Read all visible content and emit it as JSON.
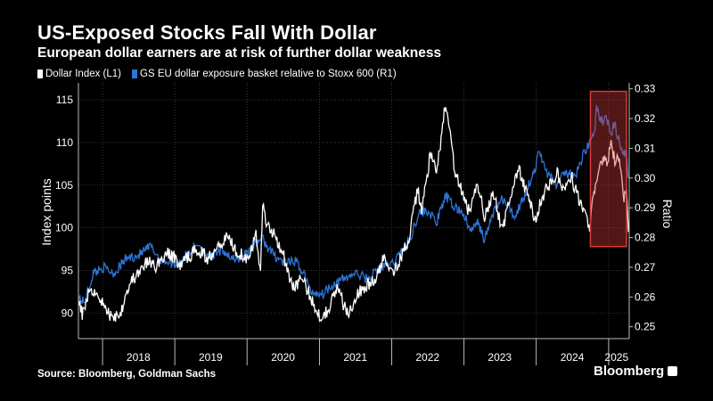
{
  "title": "US-Exposed Stocks Fall With Dollar",
  "subtitle": "European dollar earners are at risk of further dollar weakness",
  "source": "Source: Bloomberg, Goldman Sachs",
  "brand": "Bloomberg",
  "colors": {
    "dollar_index": "#ffffff",
    "gs_basket": "#2e74d4",
    "highlight": "#d93a3a"
  },
  "chart_data": {
    "type": "line",
    "title": "US-Exposed Stocks Fall With Dollar",
    "subtitle": "European dollar earners are at risk of further dollar weakness",
    "ylabel": "Index points",
    "y2label": "Ratio",
    "ylim": [
      87,
      117
    ],
    "y2lim": [
      0.246,
      0.332
    ],
    "yticks": [
      90,
      95,
      100,
      105,
      110,
      115
    ],
    "y2ticks": [
      0.25,
      0.26,
      0.27,
      0.28,
      0.29,
      0.3,
      0.31,
      0.32,
      0.33
    ],
    "y2tick_labels": [
      "0.25",
      "0.26",
      "0.27",
      "0.28",
      "0.29",
      "0.30",
      "0.31",
      "0.32",
      "0.33"
    ],
    "xlim": [
      "2017-09-01",
      "2025-04-15"
    ],
    "year_labels": [
      {
        "label": "2018",
        "mid": "2018-07-01"
      },
      {
        "label": "2019",
        "mid": "2019-07-01"
      },
      {
        "label": "2020",
        "mid": "2020-07-01"
      },
      {
        "label": "2021",
        "mid": "2021-07-01"
      },
      {
        "label": "2022",
        "mid": "2022-07-01"
      },
      {
        "label": "2023",
        "mid": "2023-07-01"
      },
      {
        "label": "2024",
        "mid": "2024-07-01"
      },
      {
        "label": "2025",
        "mid": "2025-02-10"
      }
    ],
    "year_boundaries": [
      "2018-01-01",
      "2019-01-01",
      "2020-01-01",
      "2021-01-01",
      "2022-01-01",
      "2023-01-01",
      "2024-01-01",
      "2025-01-01"
    ],
    "grid": true,
    "legend_position": "top-left",
    "highlight_range": {
      "start": "2024-10-01",
      "end": "2025-04-01",
      "ymin": 97.8,
      "ymax": 116
    },
    "series": [
      {
        "name": "Dollar Index (L1)",
        "axis": "left",
        "points": [
          [
            "2017-09-01",
            92
          ],
          [
            "2017-09-20",
            90
          ],
          [
            "2017-11-01",
            93
          ],
          [
            "2017-12-15",
            92
          ],
          [
            "2018-01-15",
            90.5
          ],
          [
            "2018-02-15",
            89.5
          ],
          [
            "2018-04-01",
            90
          ],
          [
            "2018-05-01",
            92.5
          ],
          [
            "2018-06-01",
            94
          ],
          [
            "2018-07-01",
            94.5
          ],
          [
            "2018-08-15",
            96
          ],
          [
            "2018-10-01",
            95.5
          ],
          [
            "2018-11-15",
            97
          ],
          [
            "2018-12-31",
            96.5
          ],
          [
            "2019-02-01",
            95.5
          ],
          [
            "2019-03-01",
            96.5
          ],
          [
            "2019-05-01",
            97.5
          ],
          [
            "2019-06-15",
            96.3
          ],
          [
            "2019-08-01",
            98
          ],
          [
            "2019-09-30",
            99
          ],
          [
            "2019-11-01",
            97.5
          ],
          [
            "2019-12-31",
            96.5
          ],
          [
            "2020-02-15",
            99
          ],
          [
            "2020-03-09",
            95
          ],
          [
            "2020-03-20",
            102.8
          ],
          [
            "2020-04-15",
            100
          ],
          [
            "2020-05-15",
            99.5
          ],
          [
            "2020-07-01",
            97
          ],
          [
            "2020-08-15",
            93
          ],
          [
            "2020-10-01",
            94
          ],
          [
            "2020-11-15",
            92
          ],
          [
            "2021-01-05",
            89.5
          ],
          [
            "2021-02-15",
            90.5
          ],
          [
            "2021-03-31",
            93
          ],
          [
            "2021-05-25",
            89.7
          ],
          [
            "2021-07-01",
            92
          ],
          [
            "2021-08-15",
            93
          ],
          [
            "2021-10-15",
            94
          ],
          [
            "2021-11-24",
            96.5
          ],
          [
            "2022-01-15",
            95
          ],
          [
            "2022-02-28",
            97
          ],
          [
            "2022-04-01",
            99
          ],
          [
            "2022-05-12",
            104.5
          ],
          [
            "2022-06-01",
            102
          ],
          [
            "2022-07-14",
            108.5
          ],
          [
            "2022-08-15",
            106.5
          ],
          [
            "2022-09-27",
            114
          ],
          [
            "2022-10-20",
            112
          ],
          [
            "2022-11-15",
            106.5
          ],
          [
            "2022-12-31",
            103.5
          ],
          [
            "2023-02-01",
            101.5
          ],
          [
            "2023-03-08",
            105.5
          ],
          [
            "2023-04-15",
            101.5
          ],
          [
            "2023-05-31",
            104
          ],
          [
            "2023-07-14",
            99.6
          ],
          [
            "2023-08-15",
            103
          ],
          [
            "2023-10-03",
            107
          ],
          [
            "2023-11-15",
            104
          ],
          [
            "2023-12-27",
            101
          ],
          [
            "2024-02-15",
            104.5
          ],
          [
            "2024-04-16",
            106.3
          ],
          [
            "2024-05-15",
            104.5
          ],
          [
            "2024-06-26",
            106
          ],
          [
            "2024-08-15",
            102.5
          ],
          [
            "2024-09-27",
            100.3
          ],
          [
            "2024-10-15",
            103.5
          ],
          [
            "2024-11-22",
            107.5
          ],
          [
            "2024-12-31",
            108
          ],
          [
            "2025-01-13",
            110
          ],
          [
            "2025-02-01",
            108
          ],
          [
            "2025-02-28",
            107.5
          ],
          [
            "2025-03-15",
            103.5
          ],
          [
            "2025-04-01",
            104
          ],
          [
            "2025-04-11",
            99.5
          ]
        ]
      },
      {
        "name": "GS EU dollar exposure basket relative to Stoxx 600 (R1)",
        "axis": "right",
        "points": [
          [
            "2017-09-01",
            0.26
          ],
          [
            "2017-10-01",
            0.258
          ],
          [
            "2017-11-15",
            0.268
          ],
          [
            "2018-01-01",
            0.27
          ],
          [
            "2018-03-01",
            0.268
          ],
          [
            "2018-05-01",
            0.273
          ],
          [
            "2018-07-01",
            0.274
          ],
          [
            "2018-09-01",
            0.277
          ],
          [
            "2018-10-15",
            0.273
          ],
          [
            "2018-12-31",
            0.271
          ],
          [
            "2019-03-01",
            0.274
          ],
          [
            "2019-05-01",
            0.278
          ],
          [
            "2019-07-01",
            0.273
          ],
          [
            "2019-09-01",
            0.276
          ],
          [
            "2019-11-01",
            0.272
          ],
          [
            "2020-01-15",
            0.276
          ],
          [
            "2020-03-15",
            0.28
          ],
          [
            "2020-05-01",
            0.275
          ],
          [
            "2020-07-15",
            0.271
          ],
          [
            "2020-09-01",
            0.272
          ],
          [
            "2020-10-15",
            0.268
          ],
          [
            "2020-11-15",
            0.262
          ],
          [
            "2021-01-15",
            0.261
          ],
          [
            "2021-03-01",
            0.264
          ],
          [
            "2021-05-01",
            0.266
          ],
          [
            "2021-07-01",
            0.268
          ],
          [
            "2021-09-01",
            0.266
          ],
          [
            "2021-11-01",
            0.27
          ],
          [
            "2022-01-01",
            0.271
          ],
          [
            "2022-02-15",
            0.275
          ],
          [
            "2022-04-01",
            0.279
          ],
          [
            "2022-05-15",
            0.288
          ],
          [
            "2022-07-01",
            0.289
          ],
          [
            "2022-08-15",
            0.285
          ],
          [
            "2022-10-01",
            0.294
          ],
          [
            "2022-11-01",
            0.291
          ],
          [
            "2022-12-31",
            0.288
          ],
          [
            "2023-02-01",
            0.282
          ],
          [
            "2023-03-15",
            0.285
          ],
          [
            "2023-04-15",
            0.279
          ],
          [
            "2023-06-01",
            0.289
          ],
          [
            "2023-07-15",
            0.293
          ],
          [
            "2023-09-15",
            0.287
          ],
          [
            "2023-11-01",
            0.294
          ],
          [
            "2023-12-31",
            0.304
          ],
          [
            "2024-01-15",
            0.309
          ],
          [
            "2024-03-01",
            0.301
          ],
          [
            "2024-04-15",
            0.298
          ],
          [
            "2024-06-01",
            0.302
          ],
          [
            "2024-07-15",
            0.3
          ],
          [
            "2024-09-01",
            0.309
          ],
          [
            "2024-10-20",
            0.315
          ],
          [
            "2024-11-01",
            0.323
          ],
          [
            "2024-11-20",
            0.319
          ],
          [
            "2024-12-15",
            0.32
          ],
          [
            "2025-01-15",
            0.316
          ],
          [
            "2025-02-01",
            0.318
          ],
          [
            "2025-02-28",
            0.311
          ],
          [
            "2025-03-15",
            0.307
          ],
          [
            "2025-04-01",
            0.31
          ],
          [
            "2025-04-11",
            0.3
          ]
        ]
      }
    ]
  }
}
